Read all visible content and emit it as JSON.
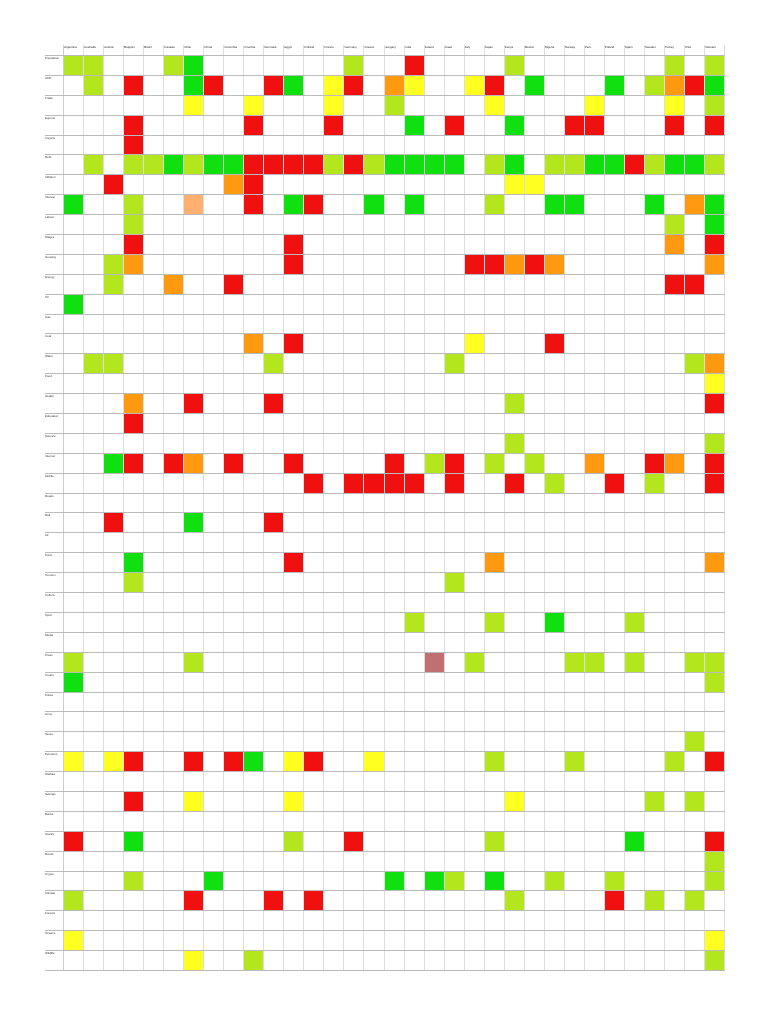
{
  "table": {
    "palette": {
      "g": "#10e010",
      "l": "#b4e61e",
      "y": "#ffff20",
      "o": "#ff9a10",
      "r": "#f01010",
      "p": "#ffb070",
      "d": "#c07070",
      "w": "#ffffff"
    },
    "columns": [
      "Argentina",
      "Australia",
      "Austria",
      "Belgium",
      "Brazil",
      "Canada",
      "Chile",
      "China",
      "Colombia",
      "Czechia",
      "Denmark",
      "Egypt",
      "Finland",
      "France",
      "Germany",
      "Greece",
      "Hungary",
      "India",
      "Ireland",
      "Israel",
      "Italy",
      "Japan",
      "Kenya",
      "Mexico",
      "Nigeria",
      "Norway",
      "Peru",
      "Poland",
      "Spain",
      "Sweden",
      "Turkey",
      "USA",
      "Vietnam"
    ],
    "rows": [
      {
        "label": "Population",
        "cells": "llwwwlgwwwwwwwlwwrwwwwlwwwwwwwlwl"
      },
      {
        "label": "GDP",
        "cells": "wlwrwwgrwwrgwyrwoywwyrwgwwwgwlorg"
      },
      {
        "label": "Trade",
        "cells": "wwwwwwywwywwwywwlwwwwywwwwywwwywl"
      },
      {
        "label": "Exports",
        "cells": "wwwrwwwwwrwwwrwwwgwrwwgwwrrwwwrwr"
      },
      {
        "label": "Imports",
        "cells": "wwwrwwwwwwwwwwwwwwwwwwwwwwwwwwwww"
      },
      {
        "label": "Debt",
        "cells": "wlwllglggrrrrlrlggggwlgwllggrlggl"
      },
      {
        "label": "Inflation",
        "cells": "wwrwwwwworwwwwwwwwwwwwyywwwwwwwww"
      },
      {
        "label": "Interest",
        "cells": "gwwlwwpwwrwgrwwgwgwwwlwwggwwwgwog"
      },
      {
        "label": "Labour",
        "cells": "wwwlwwwwwwwwwwwwwwwwwwwwwwwwwwlwg"
      },
      {
        "label": "Wages",
        "cells": "wwwrwwwwwwwrwwwwwwwwwwwwwwwwwwowr"
      },
      {
        "label": "Housing",
        "cells": "wwlowwwwwwwrwwwwwwwwrrorowwwwwwwo"
      },
      {
        "label": "Energy",
        "cells": "wwlwwowwrwwwwwwwwwwwwwwwwwwwwwrrw"
      },
      {
        "label": "Oil",
        "cells": "gwwwwwwwwwwwwwwwwwwwwwwwwwwwwwwww"
      },
      {
        "label": "Gas",
        "cells": "wwwwwwwwwwwwwwwwwwwwwwwwwwwwwwwww"
      },
      {
        "label": "Coal",
        "cells": "wwwwwwwwwowrwwwwwwwwywwwrwwwwwwww"
      },
      {
        "label": "Water",
        "cells": "wllwwwwwwwlwwwwwwwwlwwwwwwwwwwwlo"
      },
      {
        "label": "Food",
        "cells": "wwwwwwwwwwwwwwwwwwwwwwwwwwwwwwwwy"
      },
      {
        "label": "Health",
        "cells": "wwwowwrwwwrwwwwwwwwwwwlwwwwwwwwwr"
      },
      {
        "label": "Education",
        "cells": "wwwrwwwwwwwwwwwwwwwwwwwwwwwwwwwww"
      },
      {
        "label": "Science",
        "cells": "wwwwwwwwwwwwwwwwwwwwwwlwwwwwwwwwl"
      },
      {
        "label": "Internet",
        "cells": "wwgrwrowrwwrwwwwrwlrwlwlwwowwrowr"
      },
      {
        "label": "Mobile",
        "cells": "wwwwwwwwwwwwrwrrrrwrwwrwlwwrwlwwr"
      },
      {
        "label": "Roads",
        "cells": "wwwwwwwwwwwwwwwwwwwwwwwwwwwwwwwww"
      },
      {
        "label": "Rail",
        "cells": "wwrwwwgwwwrwwwwwwwwwwwwwwwwwwwwww"
      },
      {
        "label": "Air",
        "cells": "wwwwwwwwwwwwwwwwwwwwwwwwwwwwwwwww"
      },
      {
        "label": "Ports",
        "cells": "wwwgwwwwwwwrwwwwwwwwwowwwwwwwwwwo"
      },
      {
        "label": "Tourism",
        "cells": "wwwlwwwwwwwwwwwwwwwlwwwwwwwwwwwww"
      },
      {
        "label": "Culture",
        "cells": "wwwwwwwwwwwwwwwwwwwwwwwwwwwwwwwww"
      },
      {
        "label": "Sport",
        "cells": "wwwwwwwwwwwwwwwwwlwwwlwwgwwwlwwww"
      },
      {
        "label": "Media",
        "cells": "wwwwwwwwwwwwwwwwwwwwwwwwwwwwwwwww"
      },
      {
        "label": "Press",
        "cells": "lwwwwwlwwwwwwwwwwwdwlwwwwllwlwwll"
      },
      {
        "label": "Courts",
        "cells": "gwwwwwwwwwwwwwwwwwwwwwwwwwwwwwwwl"
      },
      {
        "label": "Police",
        "cells": "wwwwwwwwwwwwwwwwwwwwwwwwwwwwwwwww"
      },
      {
        "label": "Army",
        "cells": "wwwwwwwwwwwwwwwwwwwwwwwwwwwwwwwww"
      },
      {
        "label": "Taxes",
        "cells": "wwwwwwwwwwwwwwwwwwwwwwwwwwwwwwwlw"
      },
      {
        "label": "Pensions",
        "cells": "ywyrwwrwrgwyrwwywwwwwlwwwlwwwwlwr"
      },
      {
        "label": "Welfare",
        "cells": "wwwwwwwwwwwwwwwwwwwwwwwwwwwwwwwww"
      },
      {
        "label": "Savings",
        "cells": "wwwrwwywwwwywwwwwwwwwwywwwwwwlwlw"
      },
      {
        "label": "Banks",
        "cells": "wwwwwwwwwwwwwwwwwwwwwwwwwwwwwwwww"
      },
      {
        "label": "Stocks",
        "cells": "rwwgwwwwwwwlwwrwwwwwwlwwwwwwgwwwr"
      },
      {
        "label": "Bonds",
        "cells": "wwwwwwwwwwwwwwwwwwwwwwwwwwwwwwwwl"
      },
      {
        "label": "Crypto",
        "cells": "wwwlwwwgwwwwwwwwgwglwgwwlwwlwwwwl"
      },
      {
        "label": "Climate",
        "cells": "lwwwwwrwwwrwrwwwwwwwwwlwwwwrwlwlw"
      },
      {
        "label": "Forests",
        "cells": "wwwwwwwwwwwwwwwwwwwwwwwwwwwwwwwww"
      },
      {
        "label": "Oceans",
        "cells": "ywwwwwwwwwwwwwwwwwwwwwwwwwwwwwwwy"
      },
      {
        "label": "Wildlife",
        "cells": "wwwwwwywwlwwwwwwwwwwwwwwwwwwwwwwl"
      }
    ]
  }
}
